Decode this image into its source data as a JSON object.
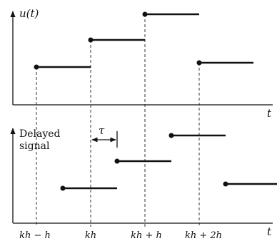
{
  "top": {
    "ylabel": "u(t)",
    "xlabel": "t"
  },
  "bottom": {
    "ylabel_line1": "Delayed",
    "ylabel_line2": "signal",
    "delay_symbol": "τ",
    "xlabel": "t"
  },
  "ticks": [
    "kh − h",
    "kh",
    "kh + h",
    "kh + 2h"
  ],
  "colors": {
    "ink": "#111111",
    "dash": "#333333"
  }
}
